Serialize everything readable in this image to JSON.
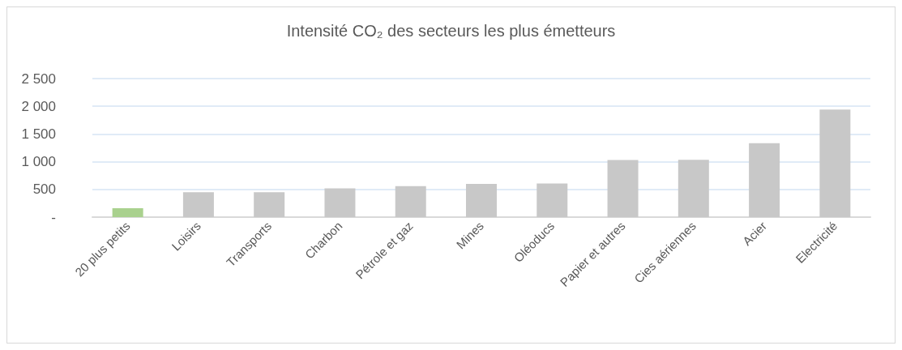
{
  "chart_data": {
    "type": "bar",
    "title": "Intensité CO₂ des secteurs les plus émetteurs",
    "categories": [
      "20 plus petits",
      "Loisirs",
      "Transports",
      "Charbon",
      "Pétrole et gaz",
      "Mines",
      "Oléoducs",
      "Papier et autres",
      "Cies aériennes",
      "Acier",
      "Electricité"
    ],
    "values": [
      160,
      450,
      450,
      520,
      560,
      600,
      605,
      1030,
      1035,
      1335,
      1940
    ],
    "colors": [
      "#a9d18e",
      "#c8c8c8",
      "#c8c8c8",
      "#c8c8c8",
      "#c8c8c8",
      "#c8c8c8",
      "#c8c8c8",
      "#c8c8c8",
      "#c8c8c8",
      "#c8c8c8",
      "#c8c8c8"
    ],
    "ylim": [
      0,
      2500
    ],
    "yticks": [
      {
        "value": 0,
        "label": "-"
      },
      {
        "value": 500,
        "label": "500"
      },
      {
        "value": 1000,
        "label": "1 000"
      },
      {
        "value": 1500,
        "label": "1 500"
      },
      {
        "value": 2000,
        "label": "2 000"
      },
      {
        "value": 2500,
        "label": "2 500"
      }
    ],
    "grid": "y"
  }
}
